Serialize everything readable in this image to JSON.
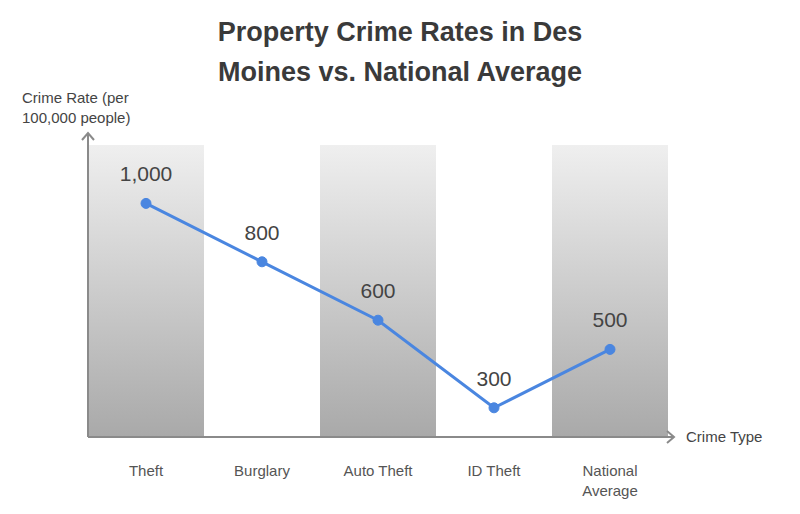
{
  "chart_data": {
    "type": "line",
    "title": "Property Crime Rates in Des Moines vs. National Average",
    "x_label": "Crime Type",
    "y_label": "Crime Rate (per 100,000 people)",
    "categories": [
      "Theft",
      "Burglary",
      "Auto Theft",
      "ID Theft",
      "National Average"
    ],
    "values": [
      1000,
      800,
      600,
      300,
      500
    ],
    "value_labels": [
      "1,000",
      "800",
      "600",
      "300",
      "500"
    ],
    "color": "#4a86e0",
    "marker": "circle",
    "ylim": [
      200,
      1200
    ],
    "yticks": [
      200,
      1200
    ],
    "grid": false,
    "data_labels": true,
    "tick_labels": "x"
  }
}
